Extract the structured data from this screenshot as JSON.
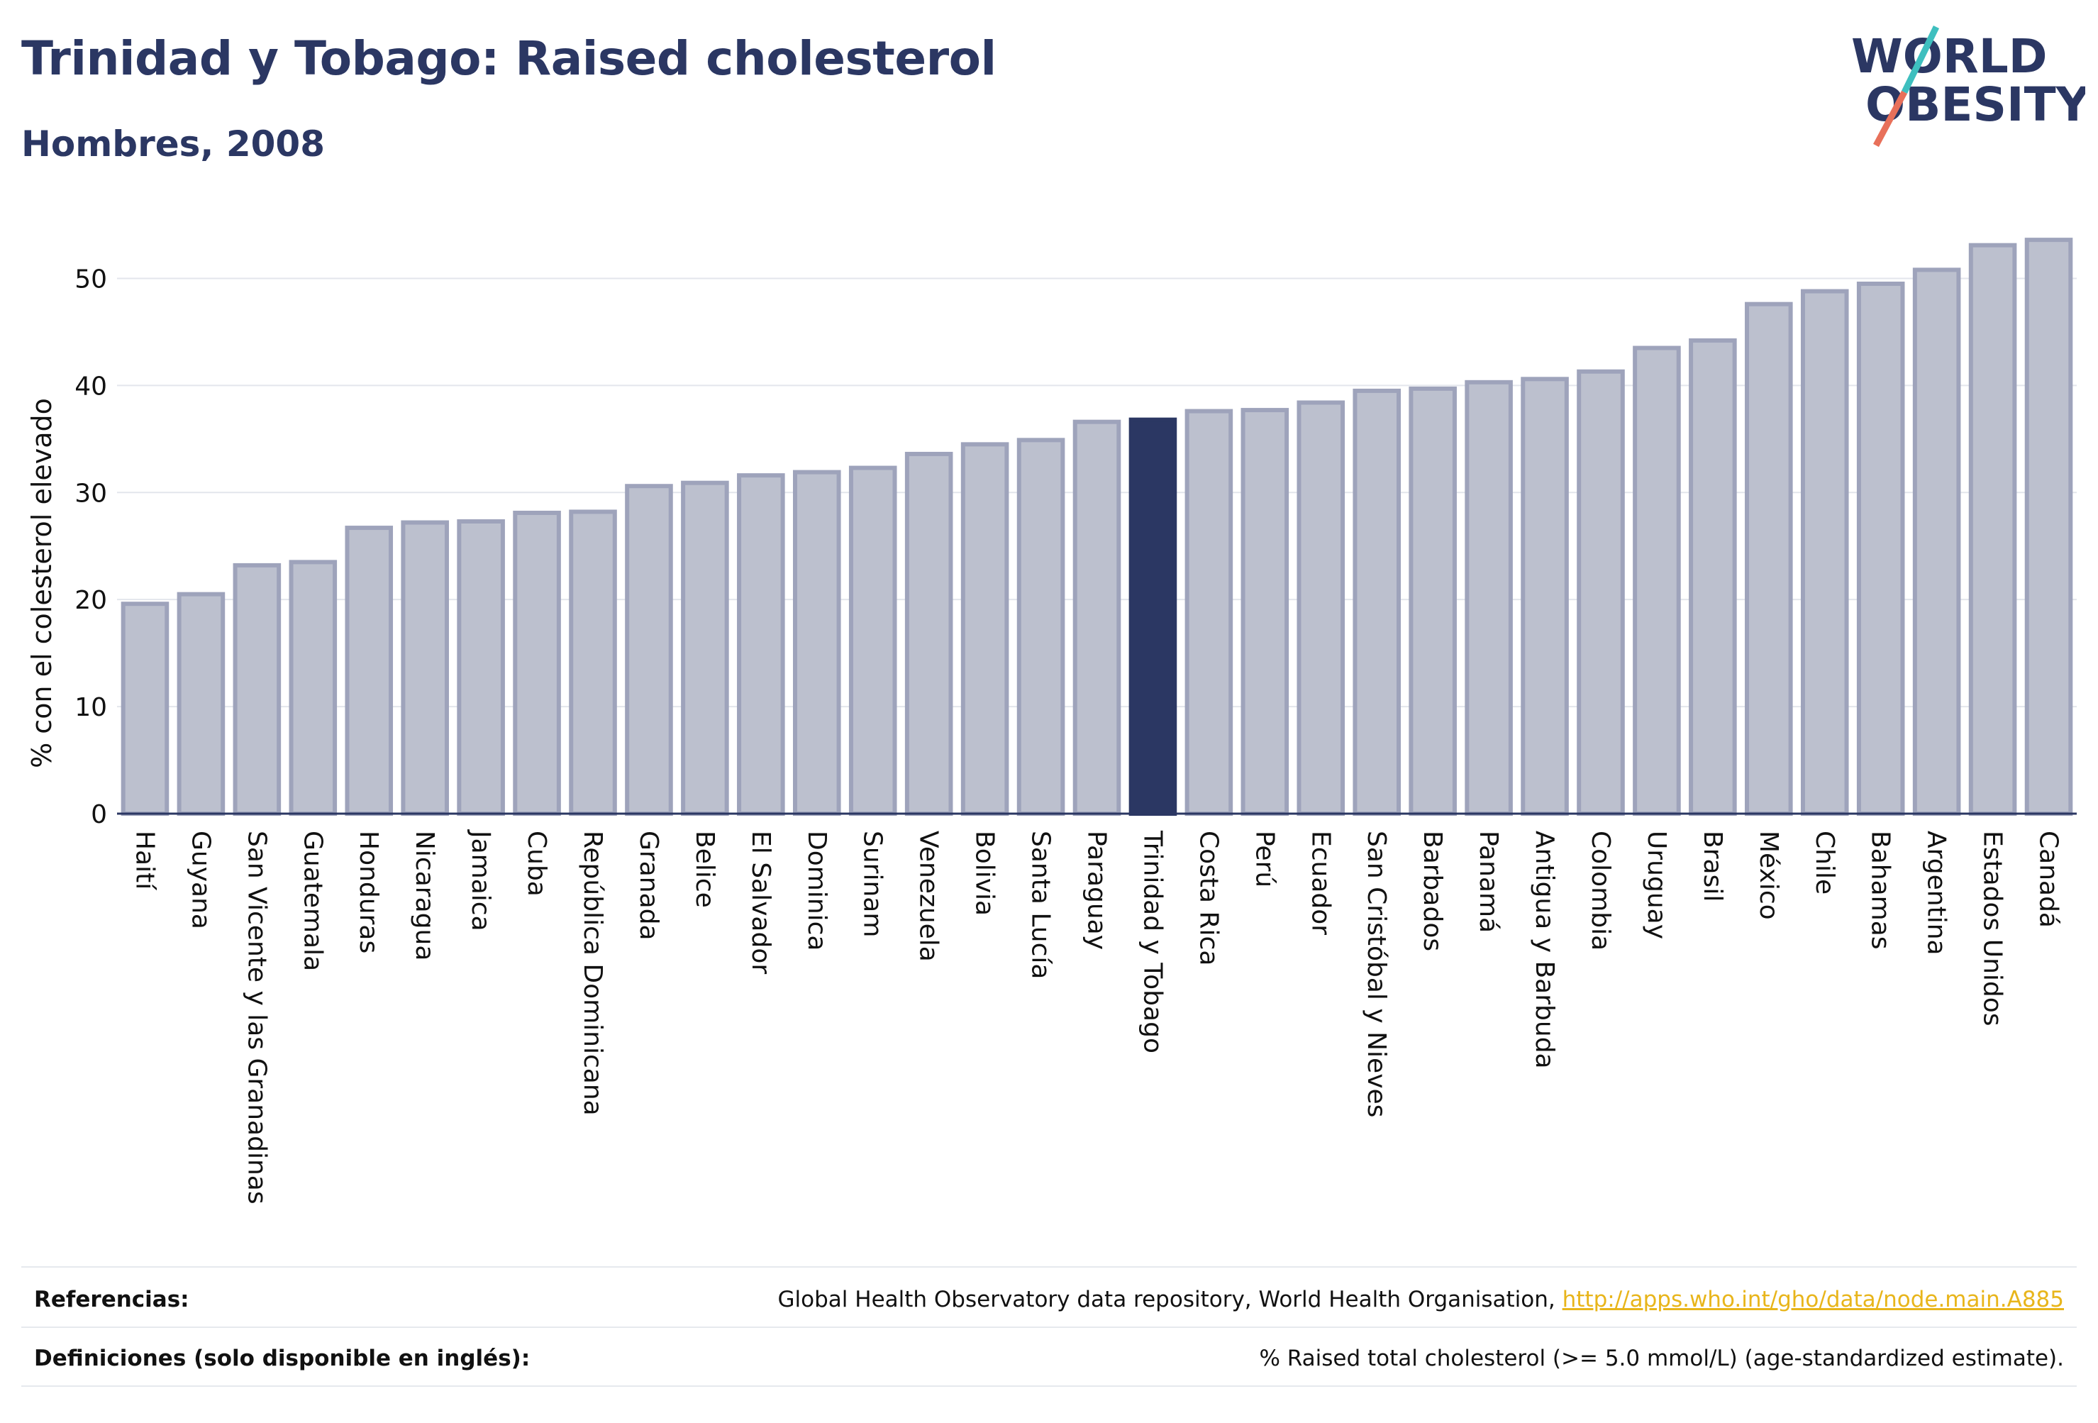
{
  "header": {
    "title": "Trinidad y Tobago: Raised cholesterol",
    "subtitle": "Hombres, 2008"
  },
  "logo": {
    "line1": "WORLD",
    "line2": "OBESITY"
  },
  "colors": {
    "title": "#2b3763",
    "bar_default": "#bcc0ce",
    "bar_border": "#9ea3bb",
    "bar_highlight": "#2b3763",
    "link": "#e8b51b",
    "logo_teal": "#3ebfbf",
    "logo_coral": "#e8705a"
  },
  "chart_data": {
    "type": "bar",
    "ylabel": "% con el colesterol elevado",
    "xlabel": "",
    "ylim": [
      0,
      55
    ],
    "yticks": [
      0,
      10,
      20,
      30,
      40,
      50
    ],
    "grid": true,
    "highlight": "Trinidad y Tobago",
    "categories": [
      "Haití",
      "Guyana",
      "San Vicente y las Granadinas",
      "Guatemala",
      "Honduras",
      "Nicaragua",
      "Jamaica",
      "Cuba",
      "República Dominicana",
      "Granada",
      "Belice",
      "El Salvador",
      "Dominica",
      "Surinam",
      "Venezuela",
      "Bolivia",
      "Santa Lucía",
      "Paraguay",
      "Trinidad y Tobago",
      "Costa Rica",
      "Perú",
      "Ecuador",
      "San Cristóbal y Nieves",
      "Barbados",
      "Panamá",
      "Antigua y Barbuda",
      "Colombia",
      "Uruguay",
      "Brasil",
      "México",
      "Chile",
      "Bahamas",
      "Argentina",
      "Estados Unidos",
      "Canadá"
    ],
    "values": [
      19.6,
      20.5,
      23.2,
      23.5,
      26.7,
      27.2,
      27.3,
      28.1,
      28.2,
      30.6,
      30.9,
      31.6,
      31.9,
      32.3,
      33.6,
      34.5,
      34.9,
      36.6,
      36.8,
      37.6,
      37.7,
      38.4,
      39.5,
      39.7,
      40.3,
      40.6,
      41.3,
      43.5,
      44.2,
      47.6,
      48.8,
      49.5,
      50.8,
      53.1,
      53.6
    ]
  },
  "footer": {
    "references_label": "Referencias:",
    "references_text": "Global Health Observatory data repository, World Health Organisation, ",
    "references_link": "http://apps.who.int/gho/data/node.main.A885",
    "definitions_label": "Definiciones (solo disponible en inglés):",
    "definitions_text": "% Raised total cholesterol (>= 5.0 mmol/L) (age-standardized estimate)."
  }
}
